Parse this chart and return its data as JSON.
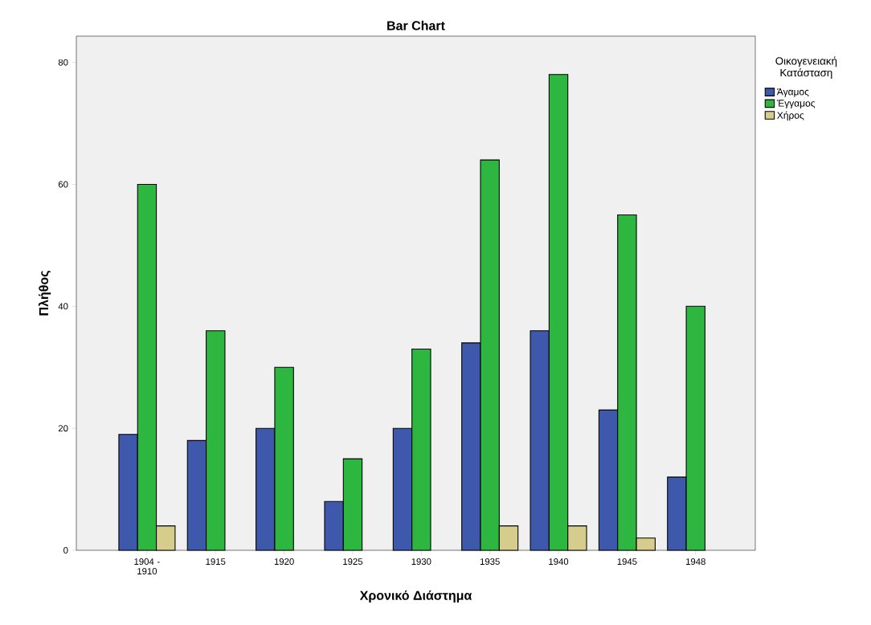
{
  "chart_data": {
    "type": "bar",
    "title": "Bar Chart",
    "xlabel": "Χρονικό Διάστημα",
    "ylabel": "Πλήθος",
    "legend_title": "Οικογενειακή Κατάσταση",
    "categories": [
      "1904 - 1910",
      "1915",
      "1920",
      "1925",
      "1930",
      "1935",
      "1940",
      "1945",
      "1948"
    ],
    "series": [
      {
        "name": "Άγαμος",
        "color": "#3e58ac",
        "values": [
          19,
          18,
          20,
          8,
          20,
          34,
          36,
          23,
          12
        ]
      },
      {
        "name": "Έγγαμος",
        "color": "#2db640",
        "values": [
          60,
          36,
          30,
          15,
          33,
          64,
          78,
          55,
          40
        ]
      },
      {
        "name": "Χήρος",
        "color": "#d6cc8c",
        "values": [
          4,
          null,
          null,
          null,
          null,
          4,
          4,
          2,
          null
        ]
      }
    ],
    "ylim": [
      0,
      84.3
    ],
    "yticks": [
      0,
      20,
      40,
      60,
      80
    ],
    "grid": false,
    "legend": "top right"
  }
}
